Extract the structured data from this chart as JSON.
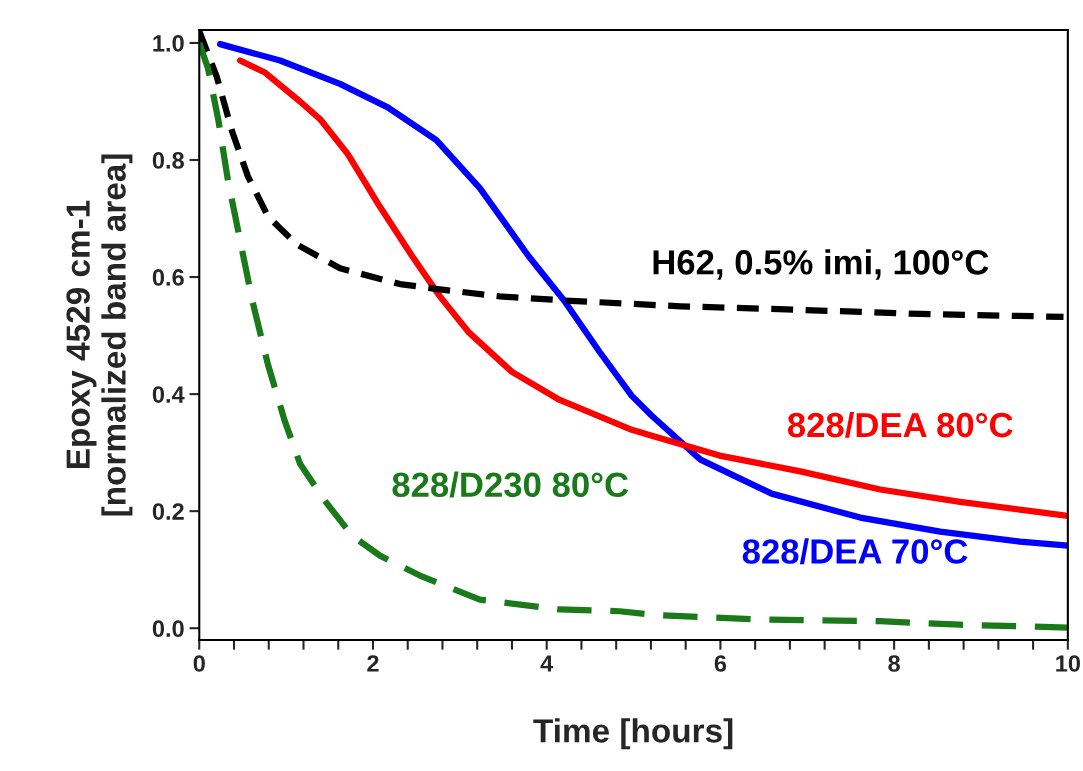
{
  "chart_data": {
    "type": "line",
    "xlabel": "Time [hours]",
    "ylabel": "Epoxy 4529 cm-1\n[normalized band area]",
    "xlim": [
      0,
      10
    ],
    "ylim": [
      -0.02,
      1.022
    ],
    "xticks": [
      0,
      {
        "value": 0.4,
        "label": null
      },
      {
        "value": 0.8,
        "label": null
      },
      {
        "value": 1.2,
        "label": null
      },
      {
        "value": 1.6,
        "label": null
      },
      2,
      {
        "value": 2.4,
        "label": null
      },
      {
        "value": 2.8,
        "label": null
      },
      {
        "value": 3.2,
        "label": null
      },
      {
        "value": 3.6,
        "label": null
      },
      4,
      {
        "value": 4.4,
        "label": null
      },
      {
        "value": 4.8,
        "label": null
      },
      {
        "value": 5.2,
        "label": null
      },
      {
        "value": 5.6,
        "label": null
      },
      6,
      {
        "value": 6.4,
        "label": null
      },
      {
        "value": 6.8,
        "label": null
      },
      {
        "value": 7.2,
        "label": null
      },
      {
        "value": 7.6,
        "label": null
      },
      8,
      {
        "value": 8.4,
        "label": null
      },
      {
        "value": 8.8,
        "label": null
      },
      {
        "value": 9.2,
        "label": null
      },
      {
        "value": 9.6,
        "label": null
      },
      10
    ],
    "yticks": [
      {
        "value": 0,
        "label": "0.0"
      },
      0.2,
      0.4,
      0.6,
      0.8,
      {
        "value": 1,
        "label": "1.0"
      }
    ],
    "grid": false,
    "legend": false,
    "series": [
      {
        "name": "828/DEA 70°C",
        "color": "#0000ff",
        "line_style": "solid",
        "x": [
          0.24,
          0.93,
          1.62,
          2.17,
          2.73,
          3.23,
          3.79,
          4.2,
          4.61,
          4.98,
          5.21,
          5.77,
          6.59,
          7.61,
          8.53,
          9.45,
          10
        ],
        "values": [
          0.998,
          0.97,
          0.93,
          0.89,
          0.834,
          0.752,
          0.636,
          0.56,
          0.472,
          0.397,
          0.363,
          0.288,
          0.23,
          0.189,
          0.165,
          0.148,
          0.141
        ]
      },
      {
        "name": "828/DEA 80°C",
        "color": "#ff0000",
        "line_style": "solid",
        "x": [
          0.47,
          0.75,
          1.16,
          1.39,
          1.71,
          2.08,
          2.45,
          2.77,
          3.1,
          3.6,
          4.15,
          4.98,
          5.21,
          5.99,
          6.92,
          7.84,
          8.76,
          10
        ],
        "values": [
          0.97,
          0.95,
          0.9,
          0.87,
          0.81,
          0.72,
          0.636,
          0.567,
          0.506,
          0.438,
          0.39,
          0.339,
          0.329,
          0.295,
          0.268,
          0.237,
          0.216,
          0.192
        ]
      },
      {
        "name": "H62, 0.5% imi, 100°C",
        "color": "#000000",
        "line_style": "dashed",
        "x": [
          0,
          0.2,
          0.38,
          0.56,
          0.79,
          1.12,
          1.62,
          2.31,
          2.77,
          3.46,
          4.2,
          5.54,
          6.92,
          8.3,
          9.95
        ],
        "values": [
          1.02,
          0.943,
          0.848,
          0.772,
          0.704,
          0.656,
          0.615,
          0.588,
          0.579,
          0.567,
          0.56,
          0.55,
          0.544,
          0.537,
          0.532
        ]
      },
      {
        "name": "828/D230 80°C",
        "color": "#1a7a1a",
        "line_style": "dashed",
        "x": [
          0,
          0.1,
          0.22,
          0.33,
          0.47,
          0.61,
          0.79,
          0.98,
          1.16,
          1.44,
          1.76,
          2.08,
          2.54,
          3.23,
          4.15,
          4.84,
          5.3,
          6.46,
          7.84,
          8.76,
          10
        ],
        "values": [
          1.0,
          0.957,
          0.868,
          0.765,
          0.663,
          0.56,
          0.451,
          0.356,
          0.281,
          0.219,
          0.158,
          0.124,
          0.09,
          0.049,
          0.032,
          0.029,
          0.022,
          0.015,
          0.012,
          0.006,
          0.001
        ]
      }
    ]
  }
}
